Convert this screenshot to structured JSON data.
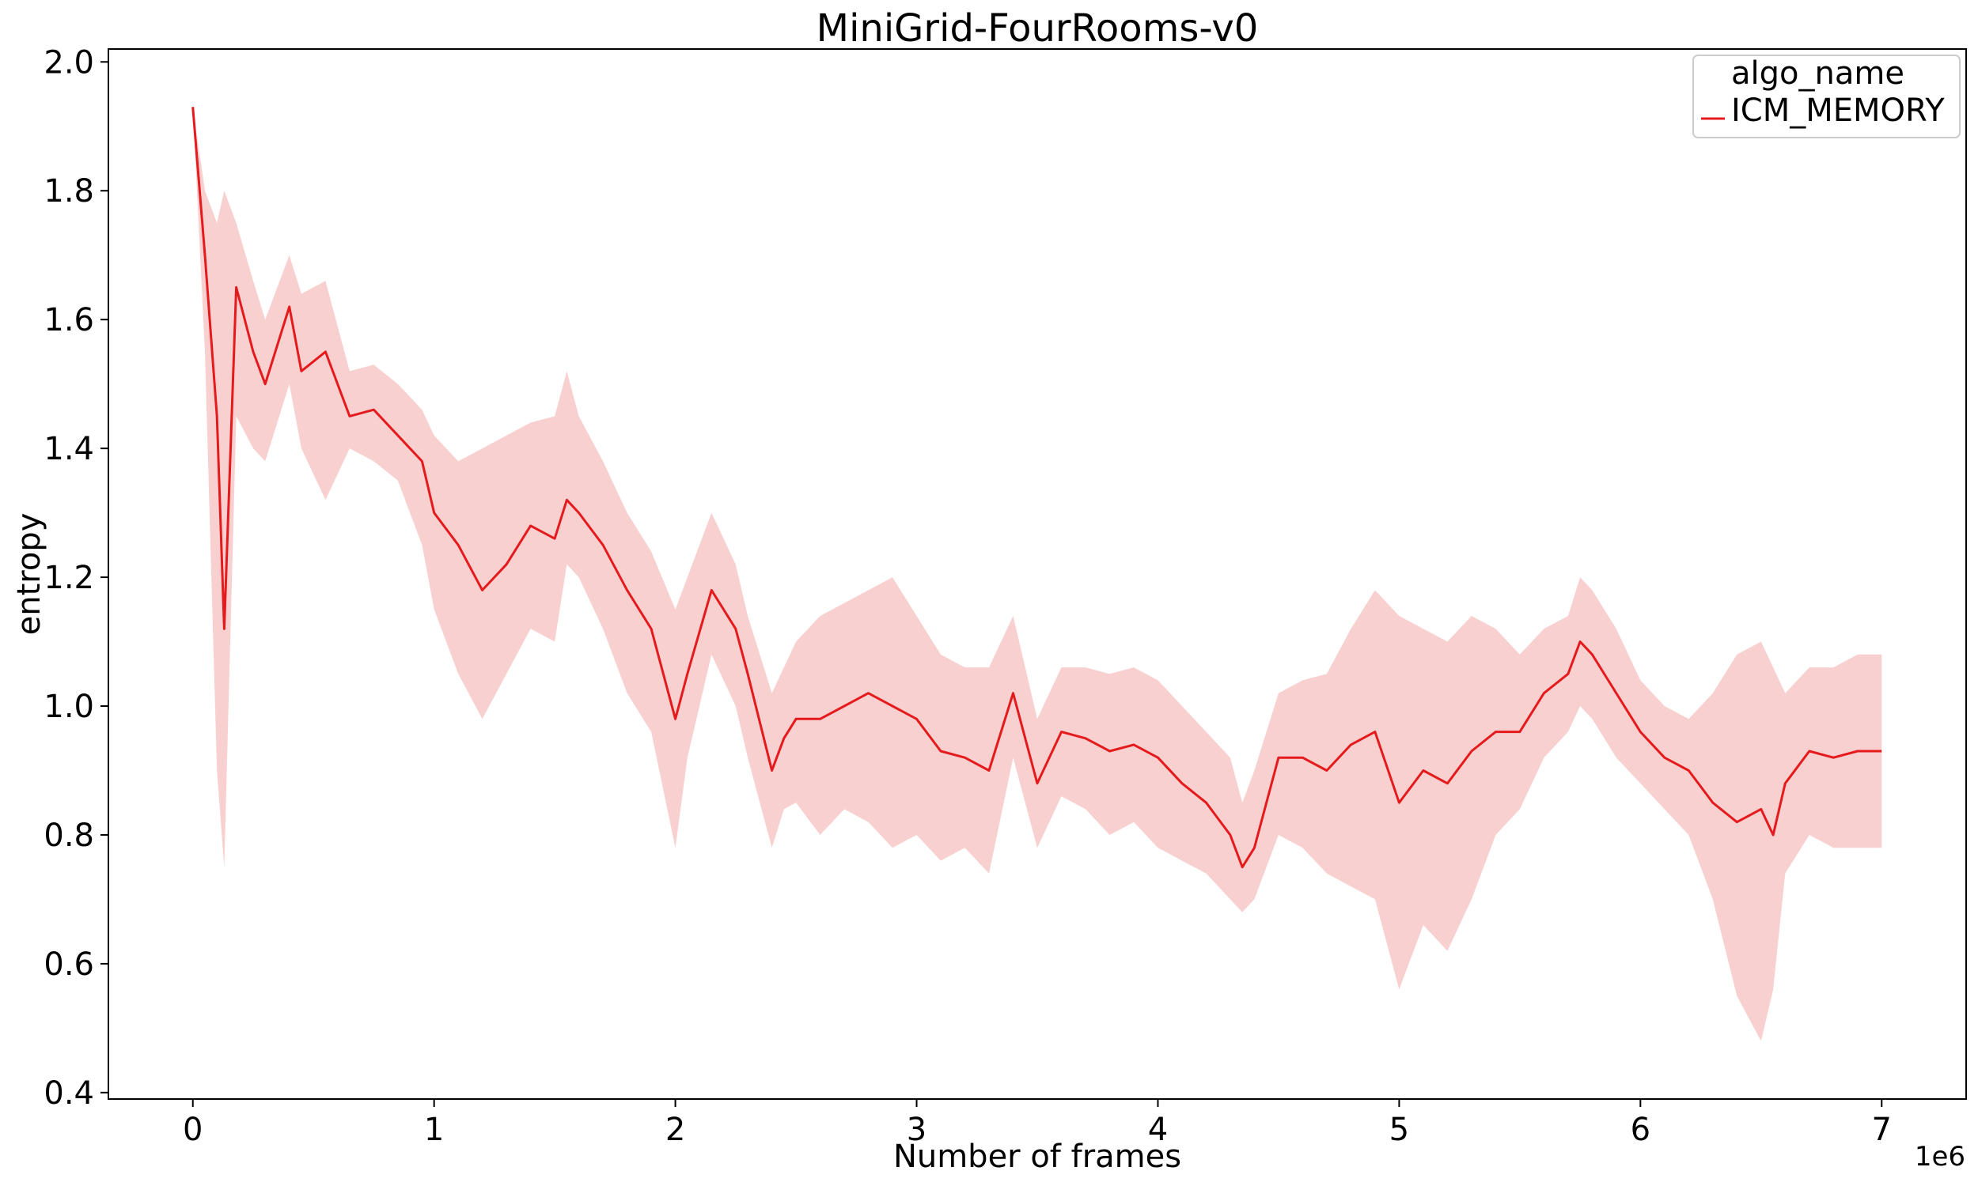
{
  "chart_data": {
    "type": "line",
    "title": "MiniGrid-FourRooms-v0",
    "xlabel": "Number of frames",
    "ylabel": "entropy",
    "x_offset_label": "1e6",
    "xlim": [
      -0.35,
      7.35
    ],
    "ylim": [
      0.39,
      2.02
    ],
    "x_ticks": [
      0,
      1,
      2,
      3,
      4,
      5,
      6,
      7
    ],
    "x_tick_labels": [
      "0",
      "1",
      "2",
      "3",
      "4",
      "5",
      "6",
      "7"
    ],
    "y_ticks": [
      0.4,
      0.6,
      0.8,
      1.0,
      1.2,
      1.4,
      1.6,
      1.8,
      2.0
    ],
    "y_tick_labels": [
      "0.4",
      "0.6",
      "0.8",
      "1.0",
      "1.2",
      "1.4",
      "1.6",
      "1.8",
      "2.0"
    ],
    "grid": false,
    "legend": {
      "title": "algo_name",
      "position": "top-right"
    },
    "series": [
      {
        "name": "ICM_MEMORY",
        "color": "#e41a1c",
        "band_color": "#f4a9a9",
        "x": [
          0.0,
          0.05,
          0.1,
          0.13,
          0.18,
          0.25,
          0.3,
          0.4,
          0.45,
          0.55,
          0.65,
          0.75,
          0.85,
          0.95,
          1.0,
          1.1,
          1.2,
          1.3,
          1.4,
          1.5,
          1.55,
          1.6,
          1.7,
          1.8,
          1.9,
          2.0,
          2.05,
          2.15,
          2.25,
          2.3,
          2.4,
          2.45,
          2.5,
          2.6,
          2.7,
          2.8,
          2.9,
          3.0,
          3.1,
          3.2,
          3.3,
          3.4,
          3.5,
          3.6,
          3.7,
          3.8,
          3.9,
          4.0,
          4.1,
          4.2,
          4.3,
          4.35,
          4.4,
          4.5,
          4.6,
          4.7,
          4.8,
          4.9,
          5.0,
          5.1,
          5.2,
          5.3,
          5.4,
          5.5,
          5.6,
          5.7,
          5.75,
          5.8,
          5.9,
          6.0,
          6.1,
          6.2,
          6.3,
          6.4,
          6.5,
          6.55,
          6.6,
          6.7,
          6.8,
          6.9,
          7.0
        ],
        "mean": [
          1.93,
          1.7,
          1.45,
          1.12,
          1.65,
          1.55,
          1.5,
          1.62,
          1.52,
          1.55,
          1.45,
          1.46,
          1.42,
          1.38,
          1.3,
          1.25,
          1.18,
          1.22,
          1.28,
          1.26,
          1.32,
          1.3,
          1.25,
          1.18,
          1.12,
          0.98,
          1.05,
          1.18,
          1.12,
          1.05,
          0.9,
          0.95,
          0.98,
          0.98,
          1.0,
          1.02,
          1.0,
          0.98,
          0.93,
          0.92,
          0.9,
          1.02,
          0.88,
          0.96,
          0.95,
          0.93,
          0.94,
          0.92,
          0.88,
          0.85,
          0.8,
          0.75,
          0.78,
          0.92,
          0.92,
          0.9,
          0.94,
          0.96,
          0.85,
          0.9,
          0.88,
          0.93,
          0.96,
          0.96,
          1.02,
          1.05,
          1.1,
          1.08,
          1.02,
          0.96,
          0.92,
          0.9,
          0.85,
          0.82,
          0.84,
          0.8,
          0.88,
          0.93,
          0.92,
          0.93,
          0.93
        ],
        "lower": [
          1.93,
          1.55,
          0.9,
          0.75,
          1.45,
          1.4,
          1.38,
          1.5,
          1.4,
          1.32,
          1.4,
          1.38,
          1.35,
          1.25,
          1.15,
          1.05,
          0.98,
          1.05,
          1.12,
          1.1,
          1.22,
          1.2,
          1.12,
          1.02,
          0.96,
          0.78,
          0.92,
          1.08,
          1.0,
          0.92,
          0.78,
          0.84,
          0.85,
          0.8,
          0.84,
          0.82,
          0.78,
          0.8,
          0.76,
          0.78,
          0.74,
          0.92,
          0.78,
          0.86,
          0.84,
          0.8,
          0.82,
          0.78,
          0.76,
          0.74,
          0.7,
          0.68,
          0.7,
          0.8,
          0.78,
          0.74,
          0.72,
          0.7,
          0.56,
          0.66,
          0.62,
          0.7,
          0.8,
          0.84,
          0.92,
          0.96,
          1.0,
          0.98,
          0.92,
          0.88,
          0.84,
          0.8,
          0.7,
          0.55,
          0.48,
          0.56,
          0.74,
          0.8,
          0.78,
          0.78,
          0.78
        ],
        "upper": [
          1.93,
          1.8,
          1.75,
          1.8,
          1.75,
          1.66,
          1.6,
          1.7,
          1.64,
          1.66,
          1.52,
          1.53,
          1.5,
          1.46,
          1.42,
          1.38,
          1.4,
          1.42,
          1.44,
          1.45,
          1.52,
          1.45,
          1.38,
          1.3,
          1.24,
          1.15,
          1.2,
          1.3,
          1.22,
          1.14,
          1.02,
          1.06,
          1.1,
          1.14,
          1.16,
          1.18,
          1.2,
          1.14,
          1.08,
          1.06,
          1.06,
          1.14,
          0.98,
          1.06,
          1.06,
          1.05,
          1.06,
          1.04,
          1.0,
          0.96,
          0.92,
          0.85,
          0.9,
          1.02,
          1.04,
          1.05,
          1.12,
          1.18,
          1.14,
          1.12,
          1.1,
          1.14,
          1.12,
          1.08,
          1.12,
          1.14,
          1.2,
          1.18,
          1.12,
          1.04,
          1.0,
          0.98,
          1.02,
          1.08,
          1.1,
          1.06,
          1.02,
          1.06,
          1.06,
          1.08,
          1.08
        ]
      }
    ]
  }
}
